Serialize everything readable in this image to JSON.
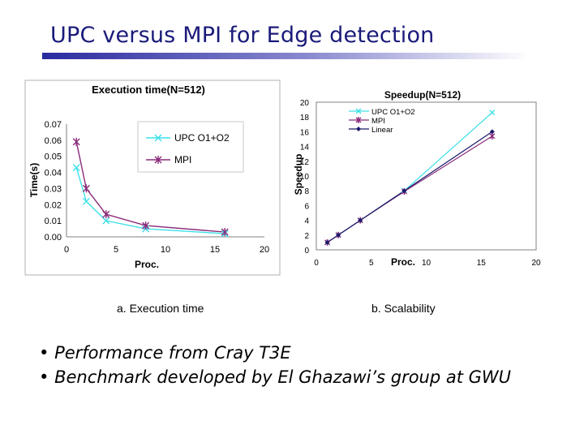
{
  "slide": {
    "title": "UPC versus MPI for Edge detection",
    "captions": {
      "a": "a. Execution time",
      "b": "b. Scalability"
    },
    "bullets": [
      "Performance from Cray T3E",
      "Benchmark developed by El Ghazawi’s group at GWU"
    ],
    "accent_color": "#1a1a7a"
  },
  "chart_data": [
    {
      "type": "line",
      "title": "Execution time(N=512)",
      "xlabel": "Proc.",
      "ylabel": "Time(s)",
      "xlim": [
        0,
        20
      ],
      "ylim": [
        0,
        0.07
      ],
      "xticks": [
        "0",
        "5",
        "10",
        "15",
        "20"
      ],
      "yticks": [
        "0.00",
        "0.01",
        "0.02",
        "0.03",
        "0.04",
        "0.05",
        "0.06",
        "0.07"
      ],
      "legend_position": "top-right",
      "series": [
        {
          "name": "UPC O1+O2",
          "color": "#3fe0e8",
          "marker": "x",
          "x": [
            1,
            2,
            4,
            8,
            16
          ],
          "values": [
            0.043,
            0.022,
            0.01,
            0.005,
            0.002
          ]
        },
        {
          "name": "MPI",
          "color": "#8b2a7a",
          "marker": "star",
          "x": [
            1,
            2,
            4,
            8,
            16
          ],
          "values": [
            0.059,
            0.03,
            0.014,
            0.007,
            0.003
          ]
        }
      ]
    },
    {
      "type": "line",
      "title": "Speedup(N=512)",
      "xlabel": "Proc.",
      "ylabel": "Speedup",
      "xlim": [
        0,
        20
      ],
      "ylim": [
        0,
        20
      ],
      "xticks": [
        "0",
        "5",
        "10",
        "15",
        "20"
      ],
      "yticks": [
        "0",
        "2",
        "4",
        "6",
        "8",
        "10",
        "12",
        "14",
        "16",
        "18",
        "20"
      ],
      "legend_position": "top-left",
      "series": [
        {
          "name": "UPC O1+O2",
          "color": "#3fe0e8",
          "marker": "x",
          "x": [
            1,
            2,
            4,
            8,
            16
          ],
          "values": [
            1,
            2,
            4,
            8,
            18.6
          ]
        },
        {
          "name": "MPI",
          "color": "#8b2a7a",
          "marker": "star",
          "x": [
            1,
            2,
            4,
            8,
            16
          ],
          "values": [
            1,
            2,
            4,
            7.9,
            15.4
          ]
        },
        {
          "name": "Linear",
          "color": "#1a1a6a",
          "marker": "diamond",
          "x": [
            1,
            2,
            4,
            8,
            16
          ],
          "values": [
            1,
            2,
            4,
            8,
            16
          ]
        }
      ]
    }
  ]
}
